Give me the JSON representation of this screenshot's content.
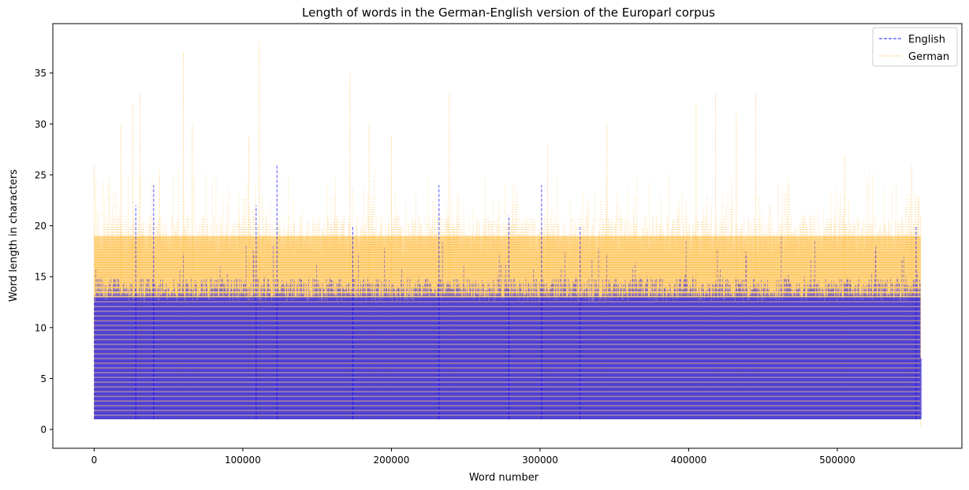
{
  "chart_data": {
    "type": "line",
    "title": "Length of words in the German-English version of the Europarl corpus",
    "xlabel": "Word number",
    "ylabel": "Word length in characters",
    "xlim": [
      -27800,
      583800
    ],
    "ylim": [
      -1.85,
      39.85
    ],
    "x_ticks": [
      0,
      100000,
      200000,
      300000,
      400000,
      500000
    ],
    "x_tick_labels": [
      "0",
      "100000",
      "200000",
      "300000",
      "400000",
      "500000"
    ],
    "y_ticks": [
      0,
      5,
      10,
      15,
      20,
      25,
      30,
      35
    ],
    "y_tick_labels": [
      "0",
      "5",
      "10",
      "15",
      "20",
      "25",
      "30",
      "35"
    ],
    "x_range": [
      0,
      556000
    ],
    "grid": false,
    "legend_position": "upper right",
    "series": [
      {
        "name": "English",
        "color": "#0000ff",
        "line_style": "dashed",
        "typical_range": [
          1,
          14
        ],
        "peaks": [
          {
            "x": 28000,
            "y": 22
          },
          {
            "x": 40000,
            "y": 24
          },
          {
            "x": 109000,
            "y": 22
          },
          {
            "x": 123000,
            "y": 26
          },
          {
            "x": 174000,
            "y": 20
          },
          {
            "x": 232000,
            "y": 24
          },
          {
            "x": 279000,
            "y": 21
          },
          {
            "x": 301000,
            "y": 24
          },
          {
            "x": 327000,
            "y": 20
          },
          {
            "x": 553000,
            "y": 20
          }
        ]
      },
      {
        "name": "German",
        "color": "#ffa500",
        "line_style": "dotted",
        "typical_range": [
          1,
          20
        ],
        "peaks": [
          {
            "x": 0,
            "y": 26
          },
          {
            "x": 18000,
            "y": 30
          },
          {
            "x": 26000,
            "y": 32
          },
          {
            "x": 31000,
            "y": 33
          },
          {
            "x": 60000,
            "y": 37
          },
          {
            "x": 66000,
            "y": 30
          },
          {
            "x": 104000,
            "y": 29
          },
          {
            "x": 111000,
            "y": 38
          },
          {
            "x": 172000,
            "y": 35
          },
          {
            "x": 185000,
            "y": 30
          },
          {
            "x": 200000,
            "y": 29
          },
          {
            "x": 239000,
            "y": 33
          },
          {
            "x": 305000,
            "y": 28
          },
          {
            "x": 345000,
            "y": 30
          },
          {
            "x": 405000,
            "y": 32
          },
          {
            "x": 418000,
            "y": 33
          },
          {
            "x": 432000,
            "y": 31
          },
          {
            "x": 445000,
            "y": 33
          },
          {
            "x": 505000,
            "y": 27
          },
          {
            "x": 550000,
            "y": 26
          }
        ]
      }
    ]
  }
}
